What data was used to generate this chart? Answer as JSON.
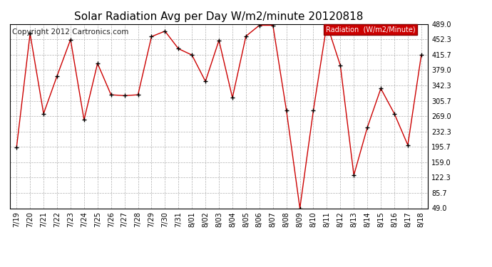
{
  "title": "Solar Radiation Avg per Day W/m2/minute 20120818",
  "copyright": "Copyright 2012 Cartronics.com",
  "legend_label": "Radiation  (W/m2/Minute)",
  "dates": [
    "7/19",
    "7/20",
    "7/21",
    "7/22",
    "7/23",
    "7/24",
    "7/25",
    "7/26",
    "7/27",
    "7/28",
    "7/29",
    "7/30",
    "7/31",
    "8/01",
    "8/02",
    "8/03",
    "8/04",
    "8/05",
    "8/06",
    "8/07",
    "8/08",
    "8/09",
    "8/10",
    "8/11",
    "8/12",
    "8/13",
    "8/14",
    "8/15",
    "8/16",
    "8/17",
    "8/18"
  ],
  "values": [
    195.0,
    466.0,
    275.0,
    365.0,
    452.0,
    260.0,
    395.0,
    320.0,
    318.0,
    320.0,
    459.0,
    472.0,
    430.0,
    415.0,
    352.0,
    450.0,
    313.0,
    460.0,
    486.0,
    486.0,
    283.0,
    49.0,
    283.0,
    489.0,
    390.0,
    128.0,
    242.0,
    335.0,
    275.0,
    200.0,
    415.0
  ],
  "ylim": [
    49.0,
    489.0
  ],
  "yticks": [
    49.0,
    85.7,
    122.3,
    159.0,
    195.7,
    232.3,
    269.0,
    305.7,
    342.3,
    379.0,
    415.7,
    452.3,
    489.0
  ],
  "line_color": "#cc0000",
  "marker_color": "#000000",
  "bg_color": "#ffffff",
  "grid_color": "#b0b0b0",
  "legend_bg": "#cc0000",
  "legend_text_color": "#ffffff",
  "title_fontsize": 11,
  "tick_fontsize": 7,
  "copyright_fontsize": 7.5
}
